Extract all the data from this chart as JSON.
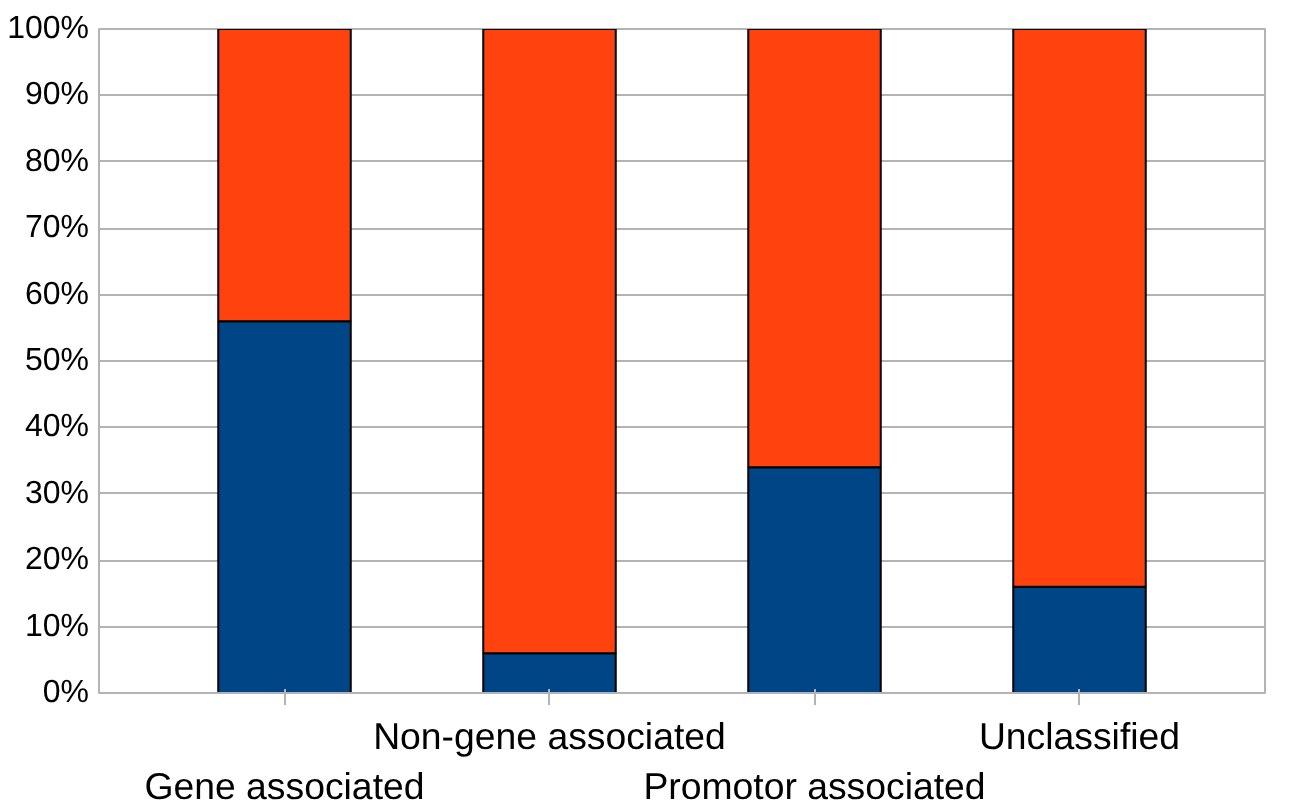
{
  "chart_data": {
    "type": "bar",
    "stacked": true,
    "categories": [
      "Gene associated",
      "Non-gene associated",
      "Promotor associated",
      "Unclassified"
    ],
    "series": [
      {
        "color": "#004586",
        "values": [
          56,
          6,
          34,
          16
        ]
      },
      {
        "color": "#ff420e",
        "values": [
          44,
          94,
          66,
          84
        ]
      }
    ],
    "ylim": [
      0,
      100
    ],
    "yticks": [
      {
        "value": 0,
        "label": "0%"
      },
      {
        "value": 10,
        "label": "10%"
      },
      {
        "value": 20,
        "label": "20%"
      },
      {
        "value": 30,
        "label": "30%"
      },
      {
        "value": 40,
        "label": "40%"
      },
      {
        "value": 50,
        "label": "50%"
      },
      {
        "value": 60,
        "label": "60%"
      },
      {
        "value": 70,
        "label": "70%"
      },
      {
        "value": 80,
        "label": "80%"
      },
      {
        "value": 90,
        "label": "90%"
      },
      {
        "value": 100,
        "label": "100%"
      }
    ],
    "grid": "y"
  }
}
